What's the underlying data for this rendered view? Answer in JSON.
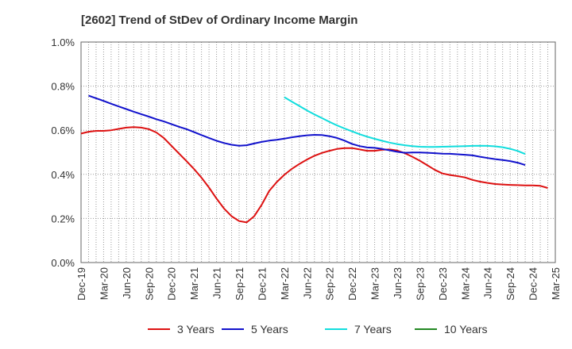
{
  "chart_data": {
    "type": "line",
    "title": "[2602]  Trend of StDev of Ordinary Income Margin",
    "xlabel": "",
    "ylabel": "",
    "x_tick_labels": [
      "Dec-19",
      "Mar-20",
      "Jun-20",
      "Sep-20",
      "Dec-20",
      "Mar-21",
      "Jun-21",
      "Sep-21",
      "Dec-21",
      "Mar-22",
      "Jun-22",
      "Sep-22",
      "Dec-22",
      "Mar-23",
      "Jun-23",
      "Sep-23",
      "Dec-23",
      "Mar-24",
      "Jun-24",
      "Sep-24",
      "Dec-24",
      "Mar-25"
    ],
    "y_tick_labels": [
      "0.0%",
      "0.2%",
      "0.4%",
      "0.6%",
      "0.8%",
      "1.0%"
    ],
    "ylim": [
      0,
      1.0
    ],
    "y_unit": "%",
    "grid": true,
    "legend_position": "bottom",
    "months": [
      "2019-12",
      "2020-01",
      "2020-02",
      "2020-03",
      "2020-04",
      "2020-05",
      "2020-06",
      "2020-07",
      "2020-08",
      "2020-09",
      "2020-10",
      "2020-11",
      "2020-12",
      "2021-01",
      "2021-02",
      "2021-03",
      "2021-04",
      "2021-05",
      "2021-06",
      "2021-07",
      "2021-08",
      "2021-09",
      "2021-10",
      "2021-11",
      "2021-12",
      "2022-01",
      "2022-02",
      "2022-03",
      "2022-04",
      "2022-05",
      "2022-06",
      "2022-07",
      "2022-08",
      "2022-09",
      "2022-10",
      "2022-11",
      "2022-12",
      "2023-01",
      "2023-02",
      "2023-03",
      "2023-04",
      "2023-05",
      "2023-06",
      "2023-07",
      "2023-08",
      "2023-09",
      "2023-10",
      "2023-11",
      "2023-12",
      "2024-01",
      "2024-02",
      "2024-03",
      "2024-04",
      "2024-05",
      "2024-06",
      "2024-07",
      "2024-08",
      "2024-09",
      "2024-10",
      "2024-11",
      "2024-12",
      "2025-01",
      "2025-02",
      "2025-03"
    ],
    "series": [
      {
        "name": "3 Years",
        "color": "#dd1111",
        "start": "2019-12",
        "values": [
          0.585,
          0.593,
          0.597,
          0.597,
          0.6,
          0.606,
          0.612,
          0.614,
          0.612,
          0.605,
          0.59,
          0.565,
          0.53,
          0.495,
          0.46,
          0.425,
          0.385,
          0.34,
          0.29,
          0.245,
          0.21,
          0.188,
          0.182,
          0.21,
          0.262,
          0.325,
          0.365,
          0.398,
          0.425,
          0.447,
          0.467,
          0.484,
          0.497,
          0.507,
          0.515,
          0.519,
          0.519,
          0.513,
          0.507,
          0.507,
          0.511,
          0.513,
          0.508,
          0.496,
          0.48,
          0.462,
          0.441,
          0.42,
          0.404,
          0.397,
          0.392,
          0.386,
          0.375,
          0.367,
          0.361,
          0.356,
          0.354,
          0.352,
          0.351,
          0.35,
          0.35,
          0.348,
          0.338
        ]
      },
      {
        "name": "5 Years",
        "color": "#1111cc",
        "start": "2020-01",
        "values": [
          0.757,
          0.745,
          0.733,
          0.72,
          0.708,
          0.696,
          0.684,
          0.673,
          0.662,
          0.65,
          0.64,
          0.628,
          0.616,
          0.605,
          0.592,
          0.578,
          0.565,
          0.552,
          0.542,
          0.534,
          0.53,
          0.532,
          0.54,
          0.547,
          0.553,
          0.557,
          0.562,
          0.568,
          0.573,
          0.577,
          0.579,
          0.578,
          0.573,
          0.565,
          0.553,
          0.538,
          0.528,
          0.522,
          0.52,
          0.515,
          0.509,
          0.502,
          0.498,
          0.499,
          0.499,
          0.498,
          0.496,
          0.494,
          0.493,
          0.491,
          0.489,
          0.486,
          0.48,
          0.474,
          0.469,
          0.465,
          0.46,
          0.453,
          0.442
        ]
      },
      {
        "name": "7 Years",
        "color": "#11dddd",
        "start": "2022-03",
        "values": [
          0.75,
          0.73,
          0.71,
          0.69,
          0.672,
          0.655,
          0.638,
          0.622,
          0.608,
          0.595,
          0.582,
          0.571,
          0.561,
          0.552,
          0.544,
          0.537,
          0.532,
          0.528,
          0.525,
          0.524,
          0.524,
          0.525,
          0.526,
          0.527,
          0.528,
          0.529,
          0.53,
          0.529,
          0.527,
          0.523,
          0.516,
          0.506,
          0.492
        ]
      },
      {
        "name": "10 Years",
        "color": "#228822",
        "start": "2025-03",
        "values": []
      }
    ]
  }
}
